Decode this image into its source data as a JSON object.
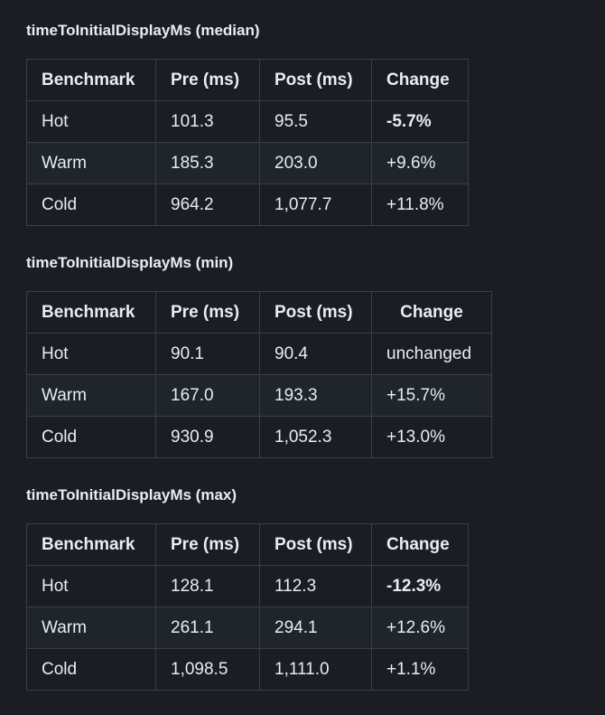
{
  "sections": [
    {
      "title": "timeToInitialDisplayMs (median)",
      "headers": [
        "Benchmark",
        "Pre (ms)",
        "Post (ms)",
        "Change"
      ],
      "rows": [
        [
          "Hot",
          "101.3",
          "95.5",
          "-5.7%"
        ],
        [
          "Warm",
          "185.3",
          "203.0",
          "+9.6%"
        ],
        [
          "Cold",
          "964.2",
          "1,077.7",
          "+11.8%"
        ]
      ]
    },
    {
      "title": "timeToInitialDisplayMs (min)",
      "headers": [
        "Benchmark",
        "Pre (ms)",
        "Post (ms)",
        "Change"
      ],
      "rows": [
        [
          "Hot",
          "90.1",
          "90.4",
          "unchanged"
        ],
        [
          "Warm",
          "167.0",
          "193.3",
          "+15.7%"
        ],
        [
          "Cold",
          "930.9",
          "1,052.3",
          "+13.0%"
        ]
      ]
    },
    {
      "title": "timeToInitialDisplayMs (max)",
      "headers": [
        "Benchmark",
        "Pre (ms)",
        "Post (ms)",
        "Change"
      ],
      "rows": [
        [
          "Hot",
          "128.1",
          "112.3",
          "-12.3%"
        ],
        [
          "Warm",
          "261.1",
          "294.1",
          "+12.6%"
        ],
        [
          "Cold",
          "1,098.5",
          "1,111.0",
          "+1.1%"
        ]
      ]
    }
  ],
  "colors": {
    "background": "#1b1d22",
    "text": "#e6edf3",
    "border": "#3a3f46",
    "alt_row": "#20242b"
  }
}
